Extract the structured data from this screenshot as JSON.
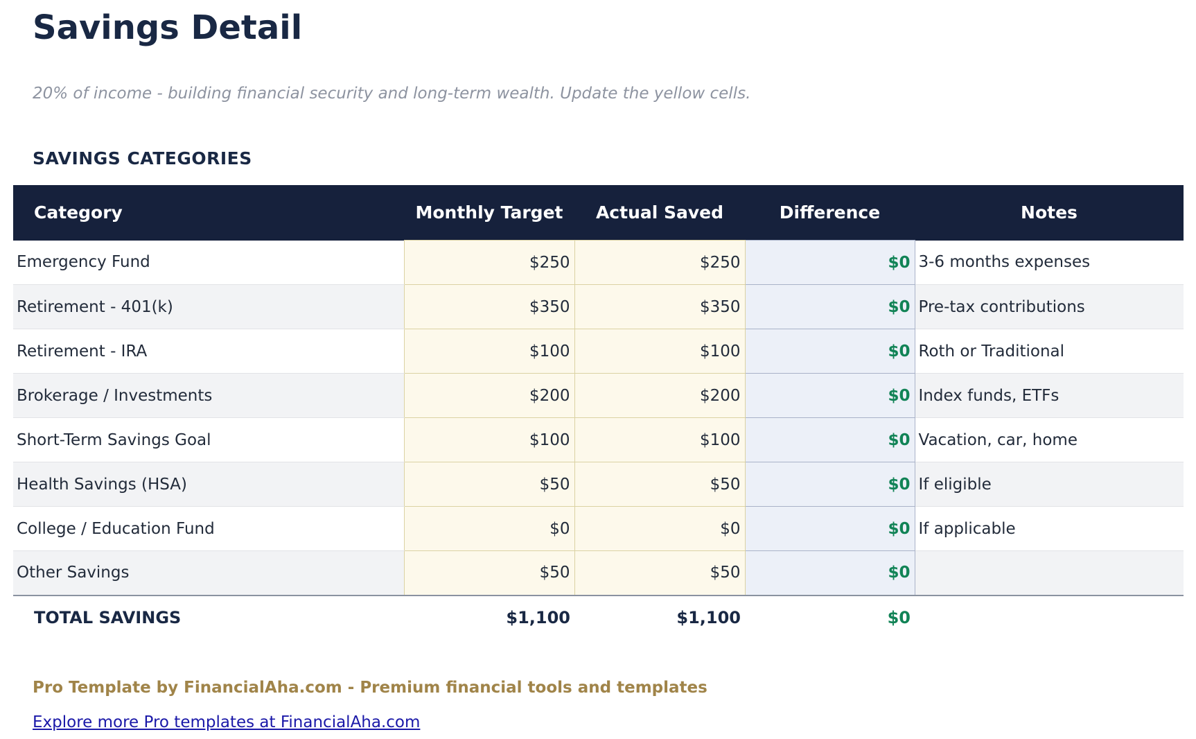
{
  "page": {
    "title": "Savings Detail",
    "subtitle": "20% of income - building financial security and long-term wealth. Update the yellow cells."
  },
  "section": {
    "heading": "SAVINGS CATEGORIES"
  },
  "table": {
    "columns": [
      "Category",
      "Monthly Target",
      "Actual Saved",
      "Difference",
      "Notes"
    ],
    "rows": [
      {
        "category": "Emergency Fund",
        "monthly_target": "$250",
        "actual_saved": "$250",
        "difference": "$0",
        "notes": "3-6 months expenses"
      },
      {
        "category": "Retirement - 401(k)",
        "monthly_target": "$350",
        "actual_saved": "$350",
        "difference": "$0",
        "notes": "Pre-tax contributions"
      },
      {
        "category": "Retirement - IRA",
        "monthly_target": "$100",
        "actual_saved": "$100",
        "difference": "$0",
        "notes": "Roth or Traditional"
      },
      {
        "category": "Brokerage / Investments",
        "monthly_target": "$200",
        "actual_saved": "$200",
        "difference": "$0",
        "notes": "Index funds, ETFs"
      },
      {
        "category": "Short-Term Savings Goal",
        "monthly_target": "$100",
        "actual_saved": "$100",
        "difference": "$0",
        "notes": "Vacation, car, home"
      },
      {
        "category": "Health Savings (HSA)",
        "monthly_target": "$50",
        "actual_saved": "$50",
        "difference": "$0",
        "notes": "If eligible"
      },
      {
        "category": "College / Education Fund",
        "monthly_target": "$0",
        "actual_saved": "$0",
        "difference": "$0",
        "notes": "If applicable"
      },
      {
        "category": "Other Savings",
        "monthly_target": "$50",
        "actual_saved": "$50",
        "difference": "$0",
        "notes": ""
      }
    ],
    "total": {
      "label": "TOTAL SAVINGS",
      "monthly_target": "$1,100",
      "actual_saved": "$1,100",
      "difference": "$0",
      "notes": ""
    }
  },
  "footer": {
    "branding": "Pro Template by FinancialAha.com - Premium financial tools and templates",
    "link": "Explore more Pro templates at FinancialAha.com"
  },
  "colors": {
    "navy": "#16213c",
    "title": "#192844",
    "green": "#118356",
    "cream": "#fdf9eb",
    "cream-border": "#dbd2a3",
    "lavender": "#ecf0f8",
    "lavender-border": "#a9b2c8",
    "alt-row": "#f2f3f5",
    "gold": "#a08449",
    "link-blue": "#1a18a8"
  }
}
